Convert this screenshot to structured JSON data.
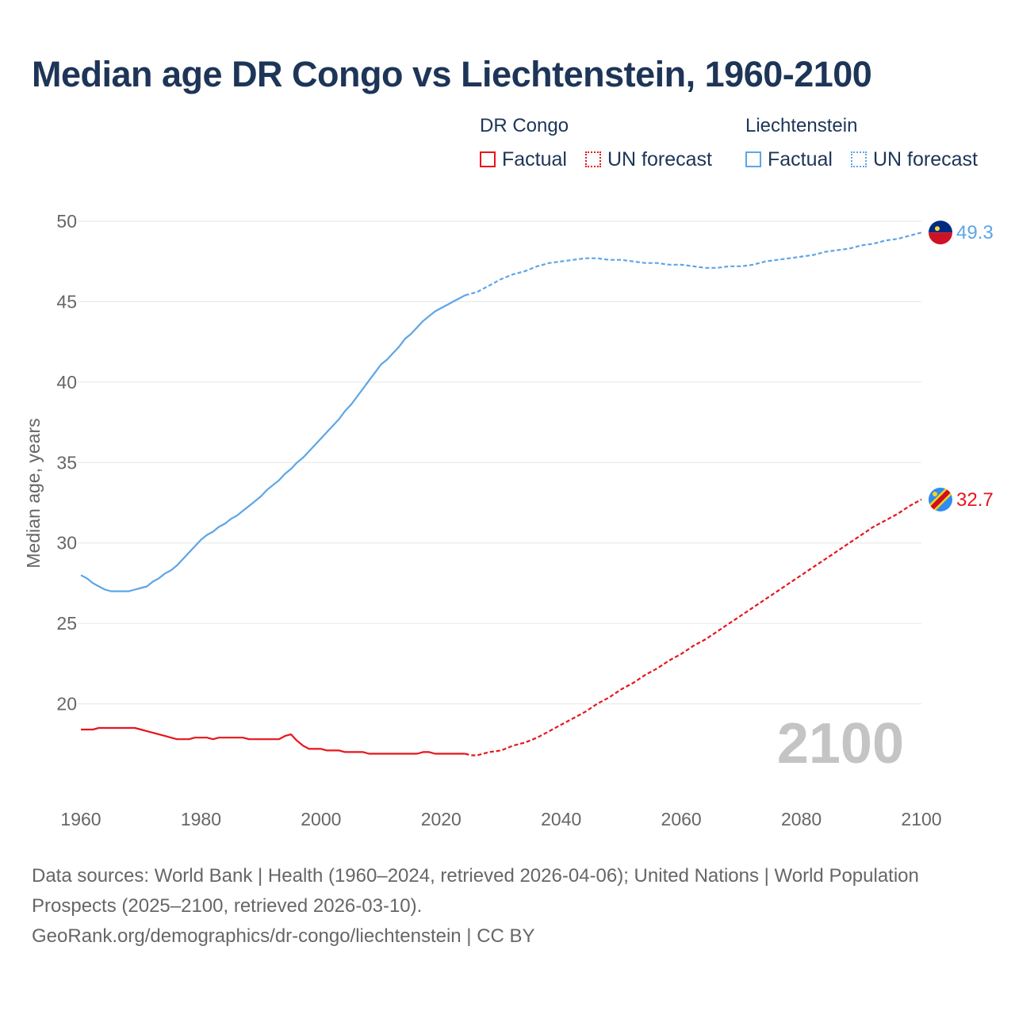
{
  "title": "Median age DR Congo vs Liechtenstein, 1960-2100",
  "legend": {
    "groups": [
      {
        "name": "DR Congo",
        "items": [
          "Factual",
          "UN forecast"
        ],
        "color": "#e8141c"
      },
      {
        "name": "Liechtenstein",
        "items": [
          "Factual",
          "UN forecast"
        ],
        "color": "#5ea5e6"
      }
    ]
  },
  "year_watermark": "2100",
  "footer": {
    "sources": "Data sources: World Bank | Health (1960–2024, retrieved 2026-04-06); United Nations | World Population Prospects (2025–2100, retrieved 2026-03-10).",
    "link": "GeoRank.org/demographics/dr-congo/liechtenstein | CC BY"
  },
  "chart_data": {
    "type": "line",
    "ylabel": "Median age, years",
    "xlabel": "",
    "xlim": [
      1960,
      2100
    ],
    "ylim": [
      15,
      50
    ],
    "xticks": [
      1960,
      1980,
      2000,
      2020,
      2040,
      2060,
      2080,
      2100
    ],
    "yticks": [
      20,
      25,
      30,
      35,
      40,
      45,
      50
    ],
    "grid": true,
    "forecast_start": 2025,
    "series": [
      {
        "name": "Liechtenstein",
        "color": "#5ea5e6",
        "end_label": "49.3",
        "points": [
          [
            1960,
            28.0
          ],
          [
            1961,
            27.8
          ],
          [
            1962,
            27.5
          ],
          [
            1963,
            27.3
          ],
          [
            1964,
            27.1
          ],
          [
            1965,
            27.0
          ],
          [
            1966,
            27.0
          ],
          [
            1967,
            27.0
          ],
          [
            1968,
            27.0
          ],
          [
            1969,
            27.1
          ],
          [
            1970,
            27.2
          ],
          [
            1971,
            27.3
          ],
          [
            1972,
            27.6
          ],
          [
            1973,
            27.8
          ],
          [
            1974,
            28.1
          ],
          [
            1975,
            28.3
          ],
          [
            1976,
            28.6
          ],
          [
            1977,
            29.0
          ],
          [
            1978,
            29.4
          ],
          [
            1979,
            29.8
          ],
          [
            1980,
            30.2
          ],
          [
            1981,
            30.5
          ],
          [
            1982,
            30.7
          ],
          [
            1983,
            31.0
          ],
          [
            1984,
            31.2
          ],
          [
            1985,
            31.5
          ],
          [
            1986,
            31.7
          ],
          [
            1987,
            32.0
          ],
          [
            1988,
            32.3
          ],
          [
            1989,
            32.6
          ],
          [
            1990,
            32.9
          ],
          [
            1991,
            33.3
          ],
          [
            1992,
            33.6
          ],
          [
            1993,
            33.9
          ],
          [
            1994,
            34.3
          ],
          [
            1995,
            34.6
          ],
          [
            1996,
            35.0
          ],
          [
            1997,
            35.3
          ],
          [
            1998,
            35.7
          ],
          [
            1999,
            36.1
          ],
          [
            2000,
            36.5
          ],
          [
            2001,
            36.9
          ],
          [
            2002,
            37.3
          ],
          [
            2003,
            37.7
          ],
          [
            2004,
            38.2
          ],
          [
            2005,
            38.6
          ],
          [
            2006,
            39.1
          ],
          [
            2007,
            39.6
          ],
          [
            2008,
            40.1
          ],
          [
            2009,
            40.6
          ],
          [
            2010,
            41.1
          ],
          [
            2011,
            41.4
          ],
          [
            2012,
            41.8
          ],
          [
            2013,
            42.2
          ],
          [
            2014,
            42.7
          ],
          [
            2015,
            43.0
          ],
          [
            2016,
            43.4
          ],
          [
            2017,
            43.8
          ],
          [
            2018,
            44.1
          ],
          [
            2019,
            44.4
          ],
          [
            2020,
            44.6
          ],
          [
            2021,
            44.8
          ],
          [
            2022,
            45.0
          ],
          [
            2023,
            45.2
          ],
          [
            2024,
            45.4
          ],
          [
            2025,
            45.5
          ],
          [
            2026,
            45.6
          ],
          [
            2028,
            46.0
          ],
          [
            2030,
            46.4
          ],
          [
            2032,
            46.7
          ],
          [
            2034,
            46.9
          ],
          [
            2036,
            47.2
          ],
          [
            2038,
            47.4
          ],
          [
            2040,
            47.5
          ],
          [
            2042,
            47.6
          ],
          [
            2044,
            47.7
          ],
          [
            2046,
            47.7
          ],
          [
            2048,
            47.6
          ],
          [
            2050,
            47.6
          ],
          [
            2052,
            47.5
          ],
          [
            2054,
            47.4
          ],
          [
            2056,
            47.4
          ],
          [
            2058,
            47.3
          ],
          [
            2060,
            47.3
          ],
          [
            2062,
            47.2
          ],
          [
            2064,
            47.1
          ],
          [
            2066,
            47.1
          ],
          [
            2068,
            47.2
          ],
          [
            2070,
            47.2
          ],
          [
            2072,
            47.3
          ],
          [
            2074,
            47.5
          ],
          [
            2076,
            47.6
          ],
          [
            2078,
            47.7
          ],
          [
            2080,
            47.8
          ],
          [
            2082,
            47.9
          ],
          [
            2084,
            48.1
          ],
          [
            2086,
            48.2
          ],
          [
            2088,
            48.3
          ],
          [
            2090,
            48.5
          ],
          [
            2092,
            48.6
          ],
          [
            2094,
            48.8
          ],
          [
            2096,
            48.9
          ],
          [
            2098,
            49.1
          ],
          [
            2100,
            49.3
          ]
        ]
      },
      {
        "name": "DR Congo",
        "color": "#e8141c",
        "end_label": "32.7",
        "points": [
          [
            1960,
            18.4
          ],
          [
            1961,
            18.4
          ],
          [
            1962,
            18.4
          ],
          [
            1963,
            18.5
          ],
          [
            1964,
            18.5
          ],
          [
            1965,
            18.5
          ],
          [
            1966,
            18.5
          ],
          [
            1967,
            18.5
          ],
          [
            1968,
            18.5
          ],
          [
            1969,
            18.5
          ],
          [
            1970,
            18.4
          ],
          [
            1971,
            18.3
          ],
          [
            1972,
            18.2
          ],
          [
            1973,
            18.1
          ],
          [
            1974,
            18.0
          ],
          [
            1975,
            17.9
          ],
          [
            1976,
            17.8
          ],
          [
            1977,
            17.8
          ],
          [
            1978,
            17.8
          ],
          [
            1979,
            17.9
          ],
          [
            1980,
            17.9
          ],
          [
            1981,
            17.9
          ],
          [
            1982,
            17.8
          ],
          [
            1983,
            17.9
          ],
          [
            1984,
            17.9
          ],
          [
            1985,
            17.9
          ],
          [
            1986,
            17.9
          ],
          [
            1987,
            17.9
          ],
          [
            1988,
            17.8
          ],
          [
            1989,
            17.8
          ],
          [
            1990,
            17.8
          ],
          [
            1991,
            17.8
          ],
          [
            1992,
            17.8
          ],
          [
            1993,
            17.8
          ],
          [
            1994,
            18.0
          ],
          [
            1995,
            18.1
          ],
          [
            1996,
            17.7
          ],
          [
            1997,
            17.4
          ],
          [
            1998,
            17.2
          ],
          [
            1999,
            17.2
          ],
          [
            2000,
            17.2
          ],
          [
            2001,
            17.1
          ],
          [
            2002,
            17.1
          ],
          [
            2003,
            17.1
          ],
          [
            2004,
            17.0
          ],
          [
            2005,
            17.0
          ],
          [
            2006,
            17.0
          ],
          [
            2007,
            17.0
          ],
          [
            2008,
            16.9
          ],
          [
            2009,
            16.9
          ],
          [
            2010,
            16.9
          ],
          [
            2011,
            16.9
          ],
          [
            2012,
            16.9
          ],
          [
            2013,
            16.9
          ],
          [
            2014,
            16.9
          ],
          [
            2015,
            16.9
          ],
          [
            2016,
            16.9
          ],
          [
            2017,
            17.0
          ],
          [
            2018,
            17.0
          ],
          [
            2019,
            16.9
          ],
          [
            2020,
            16.9
          ],
          [
            2021,
            16.9
          ],
          [
            2022,
            16.9
          ],
          [
            2023,
            16.9
          ],
          [
            2024,
            16.9
          ],
          [
            2025,
            16.8
          ],
          [
            2026,
            16.8
          ],
          [
            2028,
            17.0
          ],
          [
            2030,
            17.1
          ],
          [
            2032,
            17.4
          ],
          [
            2034,
            17.6
          ],
          [
            2036,
            17.9
          ],
          [
            2038,
            18.3
          ],
          [
            2040,
            18.7
          ],
          [
            2042,
            19.1
          ],
          [
            2044,
            19.5
          ],
          [
            2046,
            20.0
          ],
          [
            2048,
            20.4
          ],
          [
            2050,
            20.9
          ],
          [
            2052,
            21.3
          ],
          [
            2054,
            21.8
          ],
          [
            2056,
            22.2
          ],
          [
            2058,
            22.7
          ],
          [
            2060,
            23.1
          ],
          [
            2062,
            23.6
          ],
          [
            2064,
            24.0
          ],
          [
            2066,
            24.5
          ],
          [
            2068,
            25.0
          ],
          [
            2070,
            25.5
          ],
          [
            2072,
            26.0
          ],
          [
            2074,
            26.5
          ],
          [
            2076,
            27.0
          ],
          [
            2078,
            27.5
          ],
          [
            2080,
            28.0
          ],
          [
            2082,
            28.5
          ],
          [
            2084,
            29.0
          ],
          [
            2086,
            29.5
          ],
          [
            2088,
            30.0
          ],
          [
            2090,
            30.5
          ],
          [
            2092,
            31.0
          ],
          [
            2094,
            31.4
          ],
          [
            2096,
            31.8
          ],
          [
            2098,
            32.3
          ],
          [
            2100,
            32.7
          ]
        ]
      }
    ]
  }
}
